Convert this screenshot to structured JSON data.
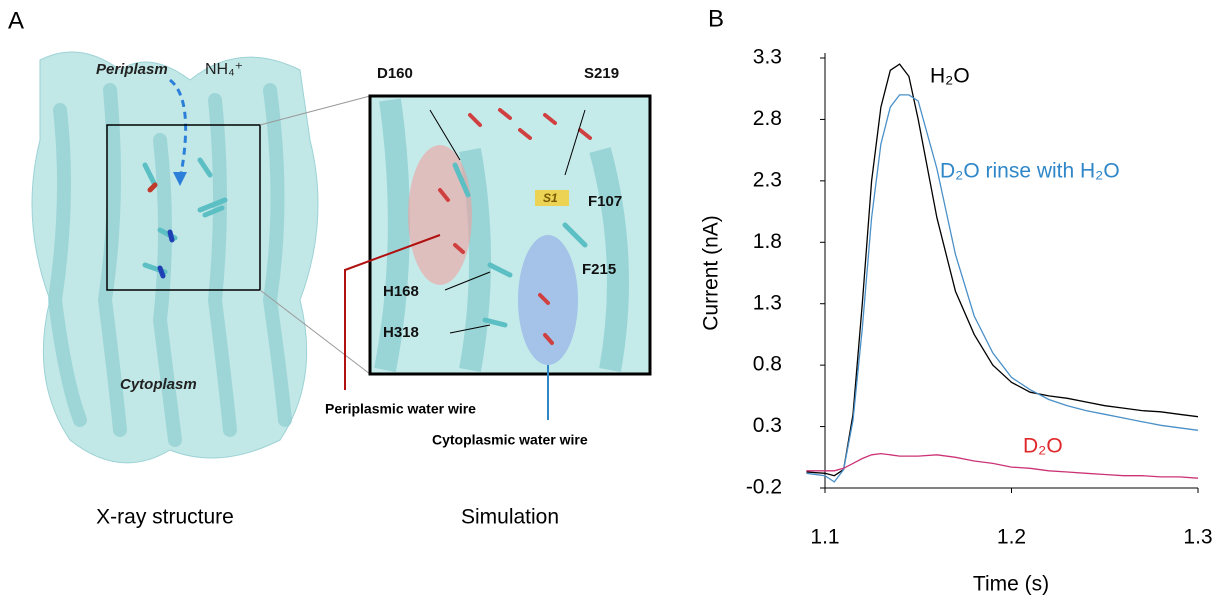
{
  "figure": {
    "panel_a": {
      "label": "A",
      "periplasm": "Periplasm",
      "ion": "NH₄⁺",
      "cytoplasm": "Cytoplasm",
      "residues": [
        "D160",
        "S219",
        "S1",
        "F107",
        "F215",
        "H168",
        "H318"
      ],
      "periplasmic_wire": "Periplasmic water wire",
      "cytoplasmic_wire": "Cytoplasmic water wire",
      "caption_left": "X-ray structure",
      "caption_right": "Simulation"
    },
    "panel_b": {
      "label": "B"
    }
  },
  "chart_data": {
    "type": "line",
    "x_label": "Time (s)",
    "y_label": "Current  (nA)",
    "x": [
      1.09,
      1.1,
      1.105,
      1.11,
      1.115,
      1.12,
      1.125,
      1.13,
      1.135,
      1.14,
      1.145,
      1.15,
      1.16,
      1.17,
      1.18,
      1.19,
      1.2,
      1.21,
      1.22,
      1.23,
      1.24,
      1.25,
      1.26,
      1.27,
      1.28,
      1.29,
      1.3
    ],
    "series": [
      {
        "name": "H₂O",
        "color": "#000000",
        "label_color": "#000000",
        "values": [
          -0.07,
          -0.08,
          -0.1,
          -0.05,
          0.4,
          1.3,
          2.3,
          2.9,
          3.2,
          3.25,
          3.15,
          2.8,
          2.0,
          1.4,
          1.05,
          0.8,
          0.66,
          0.58,
          0.55,
          0.53,
          0.5,
          0.47,
          0.45,
          0.43,
          0.42,
          0.4,
          0.38
        ]
      },
      {
        "name": "D₂O rinse with H₂O",
        "color": "#4a90c8",
        "label_color": "#2f87c8",
        "values": [
          -0.08,
          -0.1,
          -0.15,
          -0.05,
          0.35,
          1.1,
          2.0,
          2.6,
          2.9,
          3.0,
          3.0,
          2.95,
          2.4,
          1.7,
          1.2,
          0.9,
          0.7,
          0.6,
          0.52,
          0.47,
          0.43,
          0.4,
          0.37,
          0.34,
          0.31,
          0.29,
          0.27
        ]
      },
      {
        "name": "D₂O",
        "color": "#cc3377",
        "label_color": "#e0282a",
        "values": [
          -0.06,
          -0.06,
          -0.06,
          -0.04,
          0.0,
          0.04,
          0.07,
          0.08,
          0.07,
          0.06,
          0.06,
          0.06,
          0.07,
          0.05,
          0.02,
          0.0,
          -0.03,
          -0.04,
          -0.06,
          -0.07,
          -0.08,
          -0.09,
          -0.1,
          -0.1,
          -0.11,
          -0.11,
          -0.12
        ]
      }
    ],
    "xlim": [
      1.1,
      1.3
    ],
    "xticks": [
      1.1,
      1.2,
      1.3
    ],
    "ylim": [
      -0.2,
      3.3
    ],
    "yticks": [
      -0.2,
      0.3,
      0.8,
      1.3,
      1.8,
      2.3,
      2.8,
      3.3
    ]
  }
}
